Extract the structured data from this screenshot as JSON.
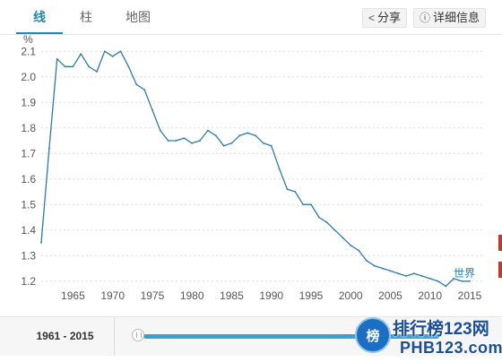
{
  "tabs": [
    {
      "label": "线",
      "active": true
    },
    {
      "label": "柱",
      "active": false
    },
    {
      "label": "地图",
      "active": false
    }
  ],
  "actions": {
    "share_label": "分享",
    "details_label": "详细信息"
  },
  "footer": {
    "range_label": "1961 - 2015"
  },
  "watermark": {
    "badge": "榜",
    "line1": "排行榜123网",
    "line2": "PHB123.com"
  },
  "colors": {
    "accent": "#1f8bb5",
    "series": "#2b7ba8"
  },
  "chart_data": {
    "type": "line",
    "ylabel": "%",
    "ylim": [
      1.15,
      2.15
    ],
    "xlim": [
      1961,
      2015
    ],
    "yticks": [
      "1.2",
      "1.3",
      "1.4",
      "1.5",
      "1.6",
      "1.7",
      "1.8",
      "1.9",
      "2.0",
      "2.1"
    ],
    "xticks": [
      "1965",
      "1970",
      "1975",
      "1980",
      "1985",
      "1990",
      "1995",
      "2000",
      "2005",
      "2010",
      "2015"
    ],
    "grid": true,
    "series": [
      {
        "name": "世界",
        "x": [
          1961,
          1962,
          1963,
          1964,
          1965,
          1966,
          1967,
          1968,
          1969,
          1970,
          1971,
          1972,
          1973,
          1974,
          1975,
          1976,
          1977,
          1978,
          1979,
          1980,
          1981,
          1982,
          1983,
          1984,
          1985,
          1986,
          1987,
          1988,
          1989,
          1990,
          1991,
          1992,
          1993,
          1994,
          1995,
          1996,
          1997,
          1998,
          1999,
          2000,
          2001,
          2002,
          2003,
          2004,
          2005,
          2006,
          2007,
          2008,
          2009,
          2010,
          2011,
          2012,
          2013,
          2014,
          2015
        ],
        "values": [
          1.35,
          1.72,
          2.07,
          2.04,
          2.04,
          2.09,
          2.04,
          2.02,
          2.1,
          2.08,
          2.1,
          2.04,
          1.97,
          1.95,
          1.87,
          1.79,
          1.75,
          1.75,
          1.76,
          1.74,
          1.75,
          1.79,
          1.77,
          1.73,
          1.74,
          1.77,
          1.78,
          1.77,
          1.74,
          1.73,
          1.64,
          1.56,
          1.55,
          1.5,
          1.5,
          1.45,
          1.43,
          1.4,
          1.37,
          1.34,
          1.32,
          1.28,
          1.26,
          1.25,
          1.24,
          1.23,
          1.22,
          1.23,
          1.22,
          1.21,
          1.2,
          1.18,
          1.21,
          1.2,
          1.2
        ]
      }
    ]
  }
}
